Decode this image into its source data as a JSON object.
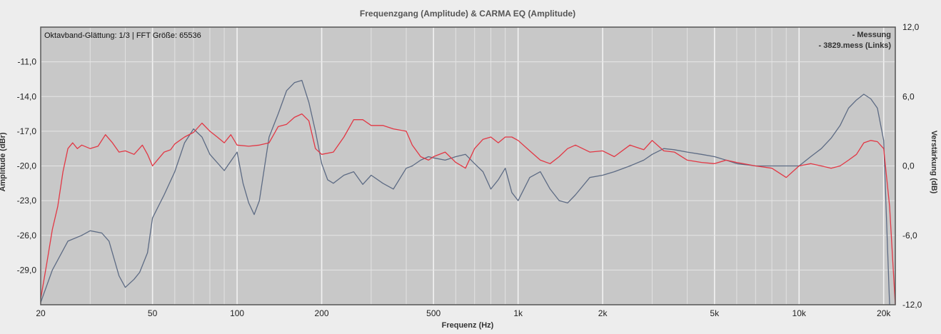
{
  "chart_data": {
    "type": "line",
    "title": "Frequenzgang (Amplitude) & CARMA EQ (Amplitude)",
    "xlabel": "Frequenz (Hz)",
    "ylabel_left": "Amplitude (dBr)",
    "ylabel_right": "Verstärkung (dB)",
    "info_text": "Oktavband-Glättung: 1/3 | FFT Größe: 65536",
    "x_scale": "log",
    "xlim": [
      20,
      22000
    ],
    "ylim_left": [
      -32.0,
      -8.0
    ],
    "ylim_right": [
      -12.0,
      12.0
    ],
    "x_ticks": [
      20,
      50,
      100,
      200,
      500,
      1000,
      2000,
      5000,
      10000,
      20000
    ],
    "x_tick_labels": [
      "20",
      "50",
      "100",
      "200",
      "500",
      "1k",
      "2k",
      "5k",
      "10k",
      "20k"
    ],
    "y_left_ticks": [
      -11.0,
      -14.0,
      -17.0,
      -20.0,
      -23.0,
      -26.0,
      -29.0
    ],
    "y_left_tick_labels": [
      "-11,0",
      "-14,0",
      "-17,0",
      "-20,0",
      "-23,0",
      "-26,0",
      "-29,0"
    ],
    "y_right_ticks": [
      12.0,
      6.0,
      0.0,
      -6.0,
      -12.0
    ],
    "y_right_tick_labels": [
      "12,0",
      "6,0",
      "0,0",
      "-6,0",
      "-12,0"
    ],
    "grid": true,
    "legend_position": "top-right",
    "background_color": "#c8c8c8",
    "series": [
      {
        "name": "- Messung",
        "axis": "left",
        "color": "#5d6b84",
        "x": [
          20,
          22,
          25,
          28,
          30,
          33,
          35,
          38,
          40,
          43,
          45,
          48,
          50,
          55,
          60,
          65,
          70,
          75,
          80,
          90,
          100,
          105,
          110,
          115,
          120,
          130,
          140,
          150,
          160,
          170,
          180,
          190,
          200,
          210,
          220,
          240,
          260,
          280,
          300,
          330,
          360,
          400,
          420,
          450,
          480,
          500,
          550,
          600,
          650,
          700,
          750,
          800,
          850,
          900,
          950,
          1000,
          1100,
          1200,
          1300,
          1400,
          1500,
          1600,
          1800,
          2000,
          2200,
          2500,
          2800,
          3000,
          3300,
          3600,
          4000,
          4500,
          5000,
          5500,
          6000,
          7000,
          8000,
          9000,
          10000,
          11000,
          12000,
          13000,
          14000,
          15000,
          16000,
          17000,
          18000,
          19000,
          20000,
          21000
        ],
        "y": [
          -31.8,
          -29.0,
          -26.5,
          -26.0,
          -25.6,
          -25.8,
          -26.5,
          -29.5,
          -30.5,
          -29.8,
          -29.2,
          -27.5,
          -24.5,
          -22.5,
          -20.5,
          -18.0,
          -16.8,
          -17.5,
          -19.0,
          -20.4,
          -18.8,
          -21.5,
          -23.2,
          -24.2,
          -23.0,
          -17.5,
          -15.5,
          -13.5,
          -12.8,
          -12.6,
          -14.5,
          -17.0,
          -19.8,
          -21.2,
          -21.5,
          -20.8,
          -20.5,
          -21.6,
          -20.8,
          -21.5,
          -22.0,
          -20.2,
          -20.0,
          -19.5,
          -19.2,
          -19.3,
          -19.5,
          -19.2,
          -19.0,
          -19.8,
          -20.5,
          -22.0,
          -21.2,
          -20.2,
          -22.3,
          -23.0,
          -21.0,
          -20.5,
          -22.0,
          -23.0,
          -23.2,
          -22.5,
          -21.0,
          -20.8,
          -20.5,
          -20.0,
          -19.5,
          -19.0,
          -18.5,
          -18.6,
          -18.8,
          -19.0,
          -19.2,
          -19.5,
          -19.8,
          -20.0,
          -20.0,
          -20.0,
          -20.0,
          -19.2,
          -18.5,
          -17.6,
          -16.5,
          -15.0,
          -14.3,
          -13.8,
          -14.2,
          -15.0,
          -17.8,
          -32.0
        ]
      },
      {
        "name": "- 3829.mess (Links)",
        "axis": "right",
        "color": "#e23744",
        "x": [
          20,
          21,
          22,
          23,
          24,
          25,
          26,
          27,
          28,
          30,
          32,
          34,
          36,
          38,
          40,
          43,
          46,
          48,
          50,
          52,
          55,
          58,
          60,
          65,
          70,
          75,
          80,
          85,
          90,
          95,
          100,
          110,
          120,
          130,
          140,
          150,
          160,
          170,
          180,
          190,
          200,
          220,
          240,
          260,
          280,
          300,
          330,
          360,
          400,
          420,
          450,
          480,
          500,
          550,
          600,
          650,
          700,
          750,
          800,
          850,
          900,
          950,
          1000,
          1100,
          1200,
          1300,
          1400,
          1500,
          1600,
          1800,
          2000,
          2200,
          2500,
          2800,
          3000,
          3300,
          3600,
          4000,
          4500,
          5000,
          5500,
          6000,
          7000,
          8000,
          9000,
          10000,
          11000,
          12000,
          13000,
          14000,
          15000,
          16000,
          17000,
          18000,
          19000,
          20000,
          21000,
          22000
        ],
        "y": [
          -11.5,
          -8.5,
          -5.5,
          -3.5,
          -0.5,
          1.5,
          2.0,
          1.5,
          1.8,
          1.5,
          1.7,
          2.7,
          2.0,
          1.2,
          1.3,
          1.0,
          1.8,
          1.0,
          0.0,
          0.5,
          1.2,
          1.4,
          1.9,
          2.5,
          2.9,
          3.7,
          3.0,
          2.5,
          2.0,
          2.7,
          1.8,
          1.7,
          1.8,
          2.0,
          3.4,
          3.6,
          4.2,
          4.5,
          3.9,
          1.5,
          1.0,
          1.2,
          2.5,
          4.0,
          4.0,
          3.5,
          3.5,
          3.2,
          3.0,
          1.8,
          0.8,
          0.5,
          0.8,
          1.2,
          0.3,
          -0.2,
          1.5,
          2.3,
          2.5,
          2.0,
          2.5,
          2.5,
          2.2,
          1.3,
          0.5,
          0.2,
          0.8,
          1.5,
          1.8,
          1.2,
          1.3,
          0.8,
          1.8,
          1.4,
          2.2,
          1.3,
          1.2,
          0.5,
          0.3,
          0.2,
          0.5,
          0.3,
          0.0,
          -0.2,
          -1.0,
          0.0,
          0.2,
          0.0,
          -0.2,
          0.0,
          0.5,
          1.0,
          2.0,
          2.2,
          2.1,
          1.5,
          -3.5,
          -12.0
        ]
      }
    ]
  }
}
